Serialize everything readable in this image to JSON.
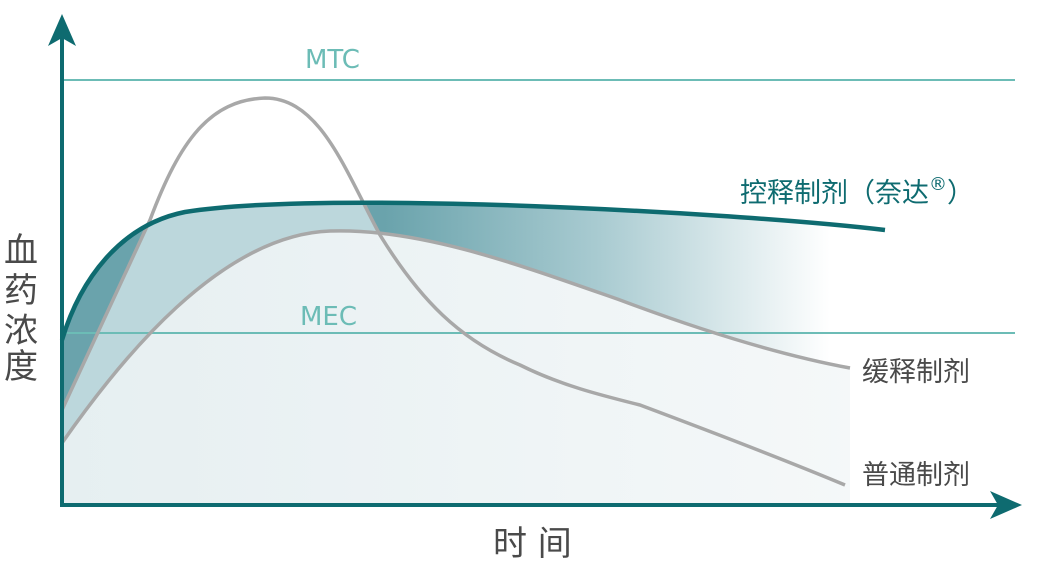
{
  "diagram": {
    "y_axis_label": [
      "血",
      "药",
      "浓",
      "度"
    ],
    "x_axis_label": "时 间",
    "mtc_label": "MTC",
    "mec_label": "MEC",
    "curves": {
      "controlled": "控释制剂（奈达",
      "controlled_mark": "®",
      "controlled_close": "）",
      "sustained": "缓释制剂",
      "immediate": "普通制剂"
    },
    "colors": {
      "axis": "#0e6b70",
      "controlled_curve": "#0e6b70",
      "reference_lines": "#6cbcb6",
      "other_curves": "#a8a8a8",
      "fill_dark": "#6aa3ac",
      "fill_mid": "#bcd7dc",
      "fill_light": "#e8f0f2",
      "text": "#4a4a4a"
    }
  }
}
